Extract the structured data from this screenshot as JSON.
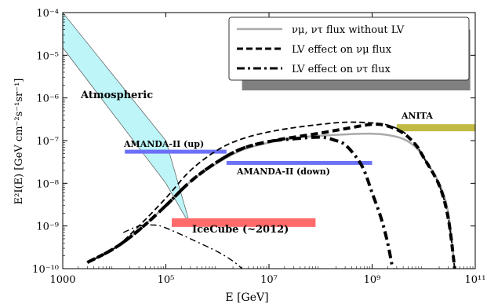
{
  "chart_data": {
    "type": "line",
    "xscale": "log",
    "yscale": "log",
    "xlim": [
      1000,
      100000000000
    ],
    "ylim": [
      1e-10,
      0.0001
    ],
    "xlabel": "E [GeV]",
    "ylabel": "E²I(E)  [GeV cm⁻²s⁻¹sr⁻¹]",
    "xticks": [
      {
        "value": 1000,
        "label": "1000"
      },
      {
        "value": 100000,
        "label": "10⁵"
      },
      {
        "value": 10000000,
        "label": "10⁷"
      },
      {
        "value": 1000000000,
        "label": "10⁹"
      },
      {
        "value": 100000000000,
        "label": "10¹¹"
      }
    ],
    "yticks": [
      {
        "value": 1e-10,
        "label": "10⁻¹⁰"
      },
      {
        "value": 1e-09,
        "label": "10⁻⁹"
      },
      {
        "value": 1e-08,
        "label": "10⁻⁸"
      },
      {
        "value": 1e-07,
        "label": "10⁻⁷"
      },
      {
        "value": 1e-06,
        "label": "10⁻⁶"
      },
      {
        "value": 1e-05,
        "label": "10⁻⁵"
      },
      {
        "value": 0.0001,
        "label": "10⁻⁴"
      }
    ],
    "legend_position": "top-right",
    "series": [
      {
        "name": "νμ, ντ  flux without LV",
        "style": "solid",
        "color": "#aaaaaa",
        "x": [
          3000,
          10000,
          30000,
          100000,
          300000,
          1000000,
          3000000,
          10000000,
          30000000,
          100000000,
          300000000,
          1000000000,
          2000000000,
          4000000000,
          7000000000,
          10000000000,
          20000000000,
          30000000000,
          40000000000
        ],
        "y": [
          1.4e-10,
          3e-10,
          8e-10,
          3e-09,
          1.1e-08,
          3e-08,
          6e-08,
          9e-08,
          1.15e-07,
          1.3e-07,
          1.4e-07,
          1.45e-07,
          1.35e-07,
          1.1e-07,
          7e-08,
          4e-08,
          1e-08,
          2e-09,
          1e-10
        ]
      },
      {
        "name": "LV effect on νμ flux",
        "style": "dashed-thick",
        "color": "#000000",
        "x": [
          3000,
          10000,
          30000,
          100000,
          300000,
          1000000,
          3000000,
          10000000,
          30000000,
          100000000,
          300000000,
          1000000000,
          2000000000,
          4000000000,
          7000000000,
          10000000000,
          20000000000,
          30000000000,
          40000000000
        ],
        "y": [
          1.4e-10,
          3e-10,
          8e-10,
          3e-09,
          1.1e-08,
          3.2e-08,
          6.5e-08,
          9.5e-08,
          1.2e-07,
          1.5e-07,
          1.9e-07,
          2.4e-07,
          2.2e-07,
          1.5e-07,
          8e-08,
          4e-08,
          9e-09,
          1.5e-09,
          1e-10
        ]
      },
      {
        "name": "LV effect on ντ flux",
        "style": "dashdot-thick",
        "color": "#000000",
        "x": [
          3000,
          10000,
          30000,
          100000,
          300000,
          1000000,
          3000000,
          10000000,
          30000000,
          100000000,
          200000000,
          300000000,
          500000000,
          700000000,
          1000000000,
          1500000000,
          2000000000,
          2500000000
        ],
        "y": [
          1.4e-10,
          3e-10,
          8e-10,
          3e-09,
          1.1e-08,
          3.2e-08,
          6.5e-08,
          9.5e-08,
          1.1e-07,
          1.2e-07,
          1e-07,
          8e-08,
          4e-08,
          2e-08,
          6e-09,
          1.5e-09,
          4e-10,
          1e-10
        ]
      },
      {
        "name": "thin dashed",
        "style": "dashed-thin",
        "color": "#000000",
        "x": [
          3000,
          10000,
          30000,
          100000,
          300000,
          1000000,
          3000000,
          10000000,
          30000000,
          100000000,
          300000000,
          1000000000,
          2000000000,
          4000000000,
          7000000000,
          10000000000,
          20000000000,
          30000000000,
          40000000000
        ],
        "y": [
          1.4e-10,
          3e-10,
          1e-09,
          4.5e-09,
          2e-08,
          6e-08,
          1.1e-07,
          1.6e-07,
          2e-07,
          2.4e-07,
          2.7e-07,
          2.6e-07,
          2.3e-07,
          1.6e-07,
          8e-08,
          4e-08,
          9e-09,
          1.5e-09,
          1e-10
        ]
      },
      {
        "name": "thin dash-dot",
        "style": "dashdot-thin",
        "color": "#000000",
        "x": [
          15000,
          30000,
          60000,
          100000,
          300000,
          1000000,
          2000000,
          3000000
        ],
        "y": [
          7e-10,
          1e-09,
          1.05e-09,
          9e-10,
          5e-10,
          2.5e-10,
          1.5e-10,
          1e-10
        ]
      }
    ],
    "bands": [
      {
        "label": "Atmospheric",
        "color": "#b7f4f7",
        "upper": {
          "x": [
            1000,
            100000,
            300000
          ],
          "y": [
            0.0001,
            1e-07,
            1e-09
          ]
        },
        "lower": {
          "x": [
            1000,
            100000,
            300000
          ],
          "y": [
            1.5e-05,
            1e-08,
            1e-09
          ]
        }
      },
      {
        "label": "AMANDA-II (up)",
        "color": "#6b71f7",
        "x": [
          16000,
          1500000
        ],
        "y": 5.5e-08
      },
      {
        "label": "AMANDA-II (down)",
        "color": "#6b71f7",
        "x": [
          1500000,
          1000000000
        ],
        "y": 3e-08
      },
      {
        "label": "IceCube (~2012)",
        "color": "#ff6b6b",
        "x": [
          130000,
          80000000
        ],
        "y": 1.2e-09
      },
      {
        "label": "ANITA",
        "color": "#c1bb46",
        "x": [
          3000000000,
          100000000000
        ],
        "y": 2e-07
      },
      {
        "label": "",
        "color": "#808080",
        "x": [
          3000000,
          80000000000
        ],
        "y_range": [
          1.5e-06,
          4e-05
        ]
      }
    ]
  }
}
